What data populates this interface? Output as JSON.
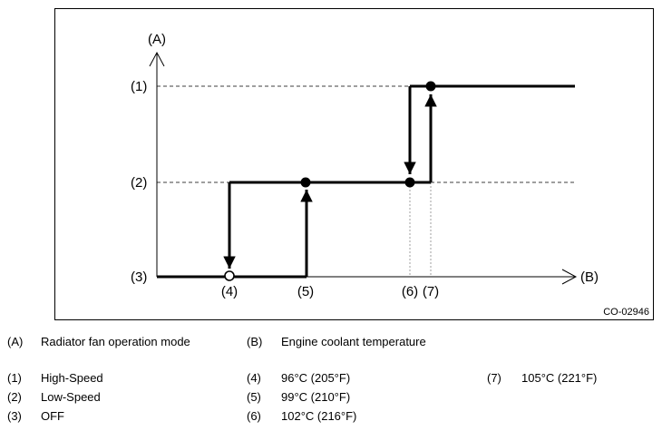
{
  "figure_code": "CO-02946",
  "axes": {
    "y_label": "(A)",
    "x_label": "(B)",
    "y_ticks": [
      "(1)",
      "(2)",
      "(3)"
    ],
    "x_ticks": [
      "(4)",
      "(5)",
      "(6)",
      "(7)"
    ]
  },
  "legend": [
    {
      "key": "(A)",
      "text": "Radiator fan operation mode"
    },
    {
      "key": "(B)",
      "text": "Engine coolant temperature"
    },
    {
      "key": "(1)",
      "text": "High-Speed"
    },
    {
      "key": "(2)",
      "text": "Low-Speed"
    },
    {
      "key": "(3)",
      "text": "OFF"
    },
    {
      "key": "(4)",
      "text": "96°C (205°F)"
    },
    {
      "key": "(5)",
      "text": "99°C (210°F)"
    },
    {
      "key": "(6)",
      "text": "102°C (216°F)"
    },
    {
      "key": "(7)",
      "text": "105°C (221°F)"
    }
  ]
}
